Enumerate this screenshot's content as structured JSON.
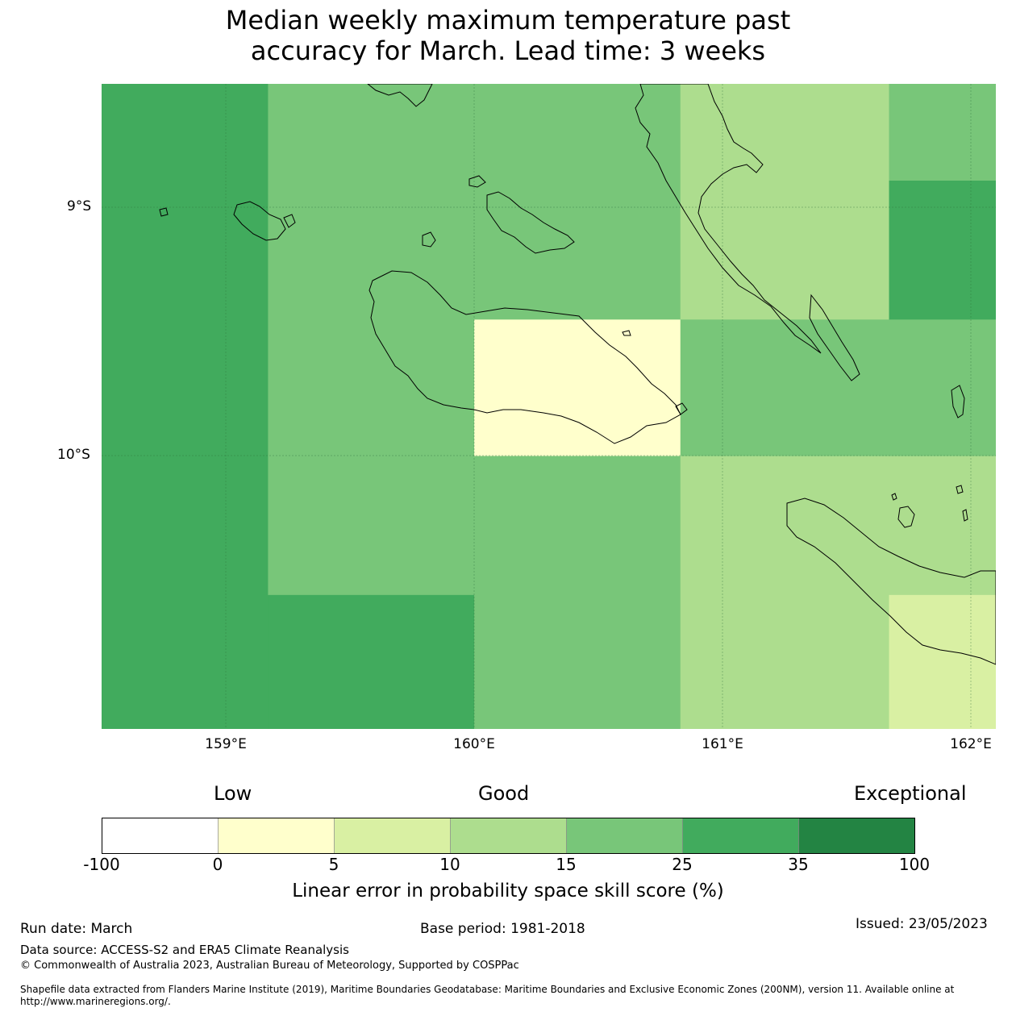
{
  "title": {
    "line1": "Median weekly maximum temperature past",
    "line2": "accuracy for March. Lead time: 3 weeks"
  },
  "map": {
    "lat_labels": [
      "9°S",
      "10°S"
    ],
    "lon_labels": [
      "159°E",
      "160°E",
      "161°E",
      "162°E"
    ],
    "extent": {
      "lon_min": 158.5,
      "lon_max": 162.1,
      "lat_min": -11.1,
      "lat_max": -8.5
    },
    "grid_cells": [
      {
        "lon0": 158.5,
        "lon1": 159.17,
        "lat0": -8.5,
        "lat1": -11.1,
        "color": "#41ab5d"
      },
      {
        "lon0": 159.17,
        "lon1": 160.0,
        "lat0": -8.5,
        "lat1": -10.56,
        "color": "#78c679"
      },
      {
        "lon0": 159.17,
        "lon1": 160.0,
        "lat0": -10.56,
        "lat1": -11.1,
        "color": "#41ab5d"
      },
      {
        "lon0": 160.0,
        "lon1": 160.83,
        "lat0": -8.5,
        "lat1": -9.45,
        "color": "#78c679"
      },
      {
        "lon0": 160.0,
        "lon1": 160.83,
        "lat0": -9.45,
        "lat1": -10.0,
        "color": "#ffffcc"
      },
      {
        "lon0": 160.0,
        "lon1": 160.83,
        "lat0": -10.0,
        "lat1": -11.1,
        "color": "#78c679"
      },
      {
        "lon0": 160.83,
        "lon1": 161.67,
        "lat0": -8.5,
        "lat1": -9.45,
        "color": "#addd8e"
      },
      {
        "lon0": 160.83,
        "lon1": 161.67,
        "lat0": -9.45,
        "lat1": -10.0,
        "color": "#78c679"
      },
      {
        "lon0": 160.83,
        "lon1": 161.67,
        "lat0": -10.0,
        "lat1": -11.1,
        "color": "#addd8e"
      },
      {
        "lon0": 161.67,
        "lon1": 162.1,
        "lat0": -8.5,
        "lat1": -8.89,
        "color": "#78c679"
      },
      {
        "lon0": 161.67,
        "lon1": 162.1,
        "lat0": -8.89,
        "lat1": -9.45,
        "color": "#41ab5d"
      },
      {
        "lon0": 161.67,
        "lon1": 162.1,
        "lat0": -9.45,
        "lat1": -10.0,
        "color": "#78c679"
      },
      {
        "lon0": 161.67,
        "lon1": 162.1,
        "lat0": -10.0,
        "lat1": -10.56,
        "color": "#addd8e"
      },
      {
        "lon0": 161.67,
        "lon1": 162.1,
        "lat0": -10.56,
        "lat1": -11.1,
        "color": "#d9f0a3"
      }
    ]
  },
  "colorbar": {
    "categories": [
      "Low",
      "Good",
      "Exceptional"
    ],
    "ticks": [
      "-100",
      "0",
      "5",
      "10",
      "15",
      "25",
      "35",
      "100"
    ],
    "colors": [
      "#ffffff",
      "#ffffcc",
      "#d9f0a3",
      "#addd8e",
      "#78c679",
      "#41ab5d",
      "#238443"
    ],
    "label": "Linear error in probability space skill score (%)"
  },
  "footer": {
    "run_date": "Run date: March",
    "base_period": "Base period: 1981-2018",
    "issued": "Issued: 23/05/2023",
    "data_source": "Data source: ACCESS-S2 and ERA5 Climate Reanalysis",
    "copyright": "© Commonwealth of Australia 2023, Australian Bureau of Meteorology, Supported by COSPPac",
    "shapefile": "Shapefile data extracted from Flanders Marine Institute (2019), Maritime Boundaries Geodatabase: Maritime Boundaries and Exclusive Economic Zones (200NM), version 11. Available online at http://www.marineregions.org/."
  }
}
